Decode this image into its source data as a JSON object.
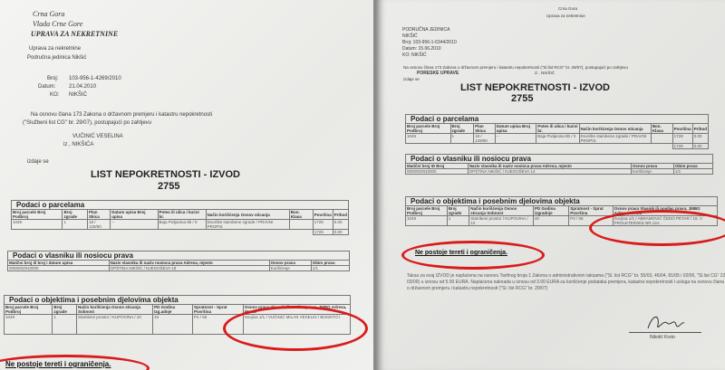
{
  "left_doc": {
    "header": [
      "Crna Gora",
      "Vlada Crne Gore",
      "UPRAVA ZA NEKRETNINE"
    ],
    "office": [
      "Uprava za nekretnine",
      "Područna jedinica Nikšić"
    ],
    "broj_label": "Broj:",
    "broj": "103-956-1-4269/2010",
    "datum_label": "Datum:",
    "datum": "21.04.2010",
    "ko_label": "KO:",
    "ko": "NIKŠIĆ",
    "intro": [
      "Na osnovu člana 173  Zakona o državnom premjeru i katastru nepokretnosti",
      "(\"Službeni list CG\" br. 29/07), postupajući po zahtjevu"
    ],
    "applicant": "VUČINIĆ VESELINA",
    "applicant_from": "iz  , NIKŠIĆA",
    "izdaje": "izdaje se",
    "title": "LIST NEPOKRETNOSTI -  IZVOD",
    "number": "2755",
    "parcels": {
      "caption": "Podaci o parcelama",
      "headers": [
        "Broj parcele Broj Podbroj",
        "Broj zgrade",
        "Plan Skica",
        "Datum upisa Broj upisa",
        "Potes ili ulica i kućni br.",
        "Način korišćenja Osnov sticanja",
        "Bon. Klasa",
        "Površina",
        "Prihod"
      ],
      "row": [
        "1049",
        "1",
        "18 / 129/80",
        "--",
        "Baja Pivljanina 8b / 0",
        "Dvorište stambene zgrade / PRAVNI PROPIS",
        "",
        "1729",
        "0.00"
      ],
      "total": [
        "1729",
        "0.00"
      ]
    },
    "owners": {
      "caption": "Podaci o vlasniku ili nosiocu prava",
      "headers": [
        "Matični broj ili broj i datum upisa",
        "Naziv vlasnika ili naziv nosioca prava Adresa, mjesto",
        "Osnov prava",
        "Obim prava"
      ],
      "row": [
        "0000002910000",
        "OPŠTINA NIKŠIĆ / NJEGOŠEVA 18",
        "Korišćenje",
        "1/1"
      ]
    },
    "objects": {
      "caption": "Podaci o objektima i posebnim djelovima objekta",
      "headers": [
        "Broj parcele Broj Podbroj",
        "Broj zgrade",
        "Način korišćenja Osnov sticanja Sobnost",
        "PD Godina Izg.adnje",
        "Spratnost - Sprat Površina",
        "Osnov prava Vlasnik ili nosilac prava, JMBG Adresa, Mesto"
      ],
      "row": [
        "1049",
        "1",
        "Stambeni prostor / KUPOVINA / 10",
        "40",
        "P4 / 55",
        "Svojina 1/1 / VUČINIĆ MILAN VESELIN / BOGETIĆI"
      ]
    },
    "no_encumbrance": "Ne postoje tereti i ograničenja."
  },
  "right_doc": {
    "header": [
      "Crna Gora",
      "Uprava za nekretnine"
    ],
    "office": [
      "PODRUČNA JEDINICA",
      "NIKŠIĆ"
    ],
    "broj": "Broj:     103-956-1-6344/2010",
    "datum": "Datum: 15.06.2010",
    "ko": "KO:       NIKŠIĆ",
    "intro": "Na osnovu člana 173 Zakona o državnom premjeru i katastru nepokretnosti (\"Sl.list RCG\" br. 29/07), postupajući po zahtjevu",
    "applicant": "PORESKE UPRAVE",
    "applicant_from": "iz  , NIKŠIĆ",
    "izdaje": "izdaje se",
    "title": "LIST NEPOKRETNOSTI - IZVOD",
    "number": "2755",
    "parcels": {
      "caption": "Podaci o parcelama",
      "headers": [
        "Broj parcele Broj Podbroj",
        "Broj zgrade",
        "Plan Skica",
        "Datum upisa Broj upisa",
        "Potes ili ulica i kućni br.",
        "Način korišćenja Osnov sticanja",
        "Bon. Klasa",
        "Površina",
        "Prihod"
      ],
      "row": [
        "1049",
        "1",
        "18 / 129/80",
        "--",
        "Baja Pivljanina 8b / 0",
        "Dvorište stambene zgrade / PRAVNI PROPIS",
        "",
        "1729",
        "0.00"
      ],
      "total": [
        "1729",
        "0.00"
      ]
    },
    "owners": {
      "caption": "Podaci o vlasniku ili nosiocu prava",
      "headers": [
        "Matični broj ID Broj",
        "Naziv vlasnika ili naziv nosioca prava Adresa, mjesto",
        "Osnov prava",
        "Obim prava"
      ],
      "row": [
        "0000002910000",
        "OPŠTINA NIKŠIĆ / NJEGOŠEVA 14",
        "Korišćenje",
        "1/1"
      ]
    },
    "objects": {
      "caption": "Podaci o objektima i posebnim djelovima objekta",
      "headers": [
        "Broj parcele Broj Podbroj",
        "Broj zgrade",
        "Način korišćenja Osnov sticanja Sobnost",
        "PD Godina izgradnje",
        "Spratnost - Sprat Površina",
        "Osnov prava Vlasnik ili nosilac prava, JMBG Adresa, Mesto"
      ],
      "row": [
        "1049",
        "1",
        "Stambeni prostor / KUPOVINA / 10",
        "40",
        "P4 / 55",
        "Svojina 1/1 / ABRAMOVIĆ ČEDO PETAR / 15. V PROLETERSKE BR.14A"
      ]
    },
    "no_encumbrance": "Ne postoje tereti i ograničenja.",
    "fee_text": "Taksa za ovaj IZVOD je naplaćena na osnovu Tarifnog broja 1 Zakona o administrativnim taksama (\"Sl. list RCG\" br. 55/03, 46/04, 81/05 i 02/06, \"Sl.list CG\" 22/08, 77/08 i 03/09) u iznosu od 5.00 EURA. Naplaćena naknada u iznosu od 3.00 EURA za korišćenje podataka premjera, katastra nepokretnosti i usluga na osnovu člana 174 Zakona o državnom premjeru i katastru nepokretnosti (\"Sl. list RCG\" br. 29/07)",
    "signatory": "Nikolić Krsto"
  },
  "colors": {
    "highlight": "#d81c1c"
  }
}
